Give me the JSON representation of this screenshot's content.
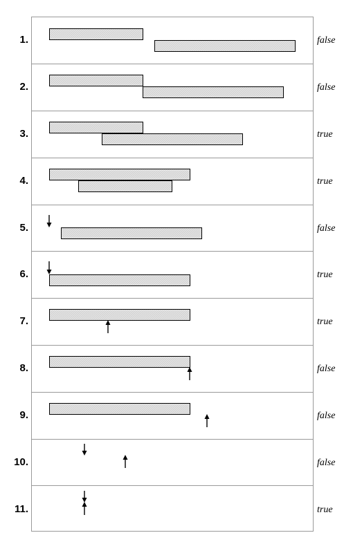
{
  "rows": [
    {
      "number": "1.",
      "result": "false",
      "bars": [
        "a",
        "b-after"
      ],
      "arrows": []
    },
    {
      "number": "2.",
      "result": "false",
      "bars": [
        "a",
        "b-meets"
      ],
      "arrows": []
    },
    {
      "number": "3.",
      "result": "true",
      "bars": [
        "a",
        "b-overlaps"
      ],
      "arrows": []
    },
    {
      "number": "4.",
      "result": "true",
      "bars": [
        "a",
        "b-during"
      ],
      "arrows": []
    },
    {
      "number": "5.",
      "result": "false",
      "bars": [
        "b-after-point"
      ],
      "arrows": [
        "down"
      ]
    },
    {
      "number": "6.",
      "result": "true",
      "bars": [
        "a"
      ],
      "arrows": [
        "down"
      ]
    },
    {
      "number": "7.",
      "result": "true",
      "bars": [
        "a"
      ],
      "arrows": [
        "up"
      ]
    },
    {
      "number": "8.",
      "result": "false",
      "bars": [
        "a"
      ],
      "arrows": [
        "up"
      ]
    },
    {
      "number": "9.",
      "result": "false",
      "bars": [
        "a"
      ],
      "arrows": [
        "up"
      ]
    },
    {
      "number": "10.",
      "result": "false",
      "bars": [],
      "arrows": [
        "down",
        "up"
      ]
    },
    {
      "number": "11.",
      "result": "true",
      "bars": [],
      "arrows": [
        "down",
        "up"
      ]
    }
  ],
  "colors": {
    "bar_fill": "#e2e2e2",
    "stroke": "#000000",
    "divider": "#999999"
  }
}
